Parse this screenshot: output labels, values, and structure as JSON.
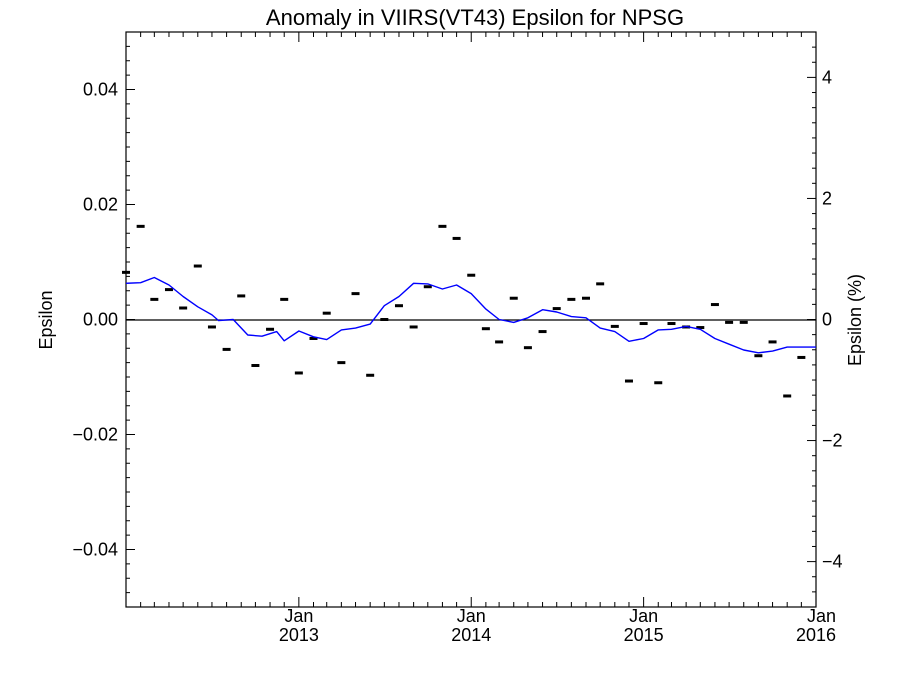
{
  "chart_data": {
    "type": "scatter",
    "title": "Anomaly in VIIRS(VT43) Epsilon for NPSG",
    "ylabel": "Epsilon",
    "ylabel_right": "Epsilon (%)",
    "xlim": [
      "2012-01-01",
      "2016-01-01"
    ],
    "ylim": [
      -0.05,
      0.05
    ],
    "ylim_right": [
      -4.75,
      4.75
    ],
    "x_ticks": [
      {
        "month": "Jan",
        "year": "2013",
        "date": "2013-01-01"
      },
      {
        "month": "Jan",
        "year": "2014",
        "date": "2014-01-01"
      },
      {
        "month": "Jan",
        "year": "2015",
        "date": "2015-01-01"
      },
      {
        "month": "Jan",
        "year": "2016",
        "date": "2016-01-01"
      }
    ],
    "y_ticks": [
      {
        "value": 0.04,
        "label": "0.04"
      },
      {
        "value": 0.02,
        "label": "0.02"
      },
      {
        "value": 0.0,
        "label": "0.00"
      },
      {
        "value": -0.02,
        "label": "−0.02"
      },
      {
        "value": -0.04,
        "label": "−0.04"
      }
    ],
    "y_ticks_right": [
      {
        "value": 4,
        "label": "4"
      },
      {
        "value": 2,
        "label": "2"
      },
      {
        "value": 0,
        "label": "0"
      },
      {
        "value": -2,
        "label": "−2"
      },
      {
        "value": -4,
        "label": "−4"
      }
    ],
    "zero_line": true,
    "grid": false,
    "series": [
      {
        "marker": "dash",
        "color": "#000000",
        "points": [
          {
            "x": "2012-01-01",
            "y": 0.0082
          },
          {
            "x": "2012-02-01",
            "y": 0.0162
          },
          {
            "x": "2012-03-01",
            "y": 0.0035
          },
          {
            "x": "2012-04-01",
            "y": 0.0052
          },
          {
            "x": "2012-05-01",
            "y": 0.002
          },
          {
            "x": "2012-06-01",
            "y": 0.0093
          },
          {
            "x": "2012-07-01",
            "y": -0.0013
          },
          {
            "x": "2012-08-01",
            "y": -0.0052
          },
          {
            "x": "2012-09-01",
            "y": 0.0041
          },
          {
            "x": "2012-10-01",
            "y": -0.008
          },
          {
            "x": "2012-11-01",
            "y": -0.0017
          },
          {
            "x": "2012-12-01",
            "y": 0.0035
          },
          {
            "x": "2013-01-01",
            "y": -0.0093
          },
          {
            "x": "2013-02-01",
            "y": -0.0033
          },
          {
            "x": "2013-03-01",
            "y": 0.0011
          },
          {
            "x": "2013-04-01",
            "y": -0.0075
          },
          {
            "x": "2013-05-01",
            "y": 0.0045
          },
          {
            "x": "2013-06-01",
            "y": -0.0097
          },
          {
            "x": "2013-07-01",
            "y": 0.0
          },
          {
            "x": "2013-08-01",
            "y": 0.0024
          },
          {
            "x": "2013-09-01",
            "y": -0.0013
          },
          {
            "x": "2013-10-01",
            "y": 0.0057
          },
          {
            "x": "2013-11-01",
            "y": 0.0162
          },
          {
            "x": "2013-12-01",
            "y": 0.0141
          },
          {
            "x": "2014-01-01",
            "y": 0.0077
          },
          {
            "x": "2014-02-01",
            "y": -0.0016
          },
          {
            "x": "2014-03-01",
            "y": -0.0039
          },
          {
            "x": "2014-04-01",
            "y": 0.0037
          },
          {
            "x": "2014-05-01",
            "y": -0.0049
          },
          {
            "x": "2014-06-01",
            "y": -0.0021
          },
          {
            "x": "2014-07-01",
            "y": 0.0019
          },
          {
            "x": "2014-08-01",
            "y": 0.0035
          },
          {
            "x": "2014-09-01",
            "y": 0.0037
          },
          {
            "x": "2014-10-01",
            "y": 0.0062
          },
          {
            "x": "2014-11-01",
            "y": -0.0012
          },
          {
            "x": "2014-12-01",
            "y": -0.0107
          },
          {
            "x": "2015-01-01",
            "y": -0.0007
          },
          {
            "x": "2015-02-01",
            "y": -0.011
          },
          {
            "x": "2015-03-01",
            "y": -0.0007
          },
          {
            "x": "2015-04-01",
            "y": -0.0013
          },
          {
            "x": "2015-05-01",
            "y": -0.0014
          },
          {
            "x": "2015-06-01",
            "y": 0.0026
          },
          {
            "x": "2015-07-01",
            "y": -0.0005
          },
          {
            "x": "2015-08-01",
            "y": -0.0005
          },
          {
            "x": "2015-09-01",
            "y": -0.0063
          },
          {
            "x": "2015-10-01",
            "y": -0.0039
          },
          {
            "x": "2015-11-01",
            "y": -0.0133
          },
          {
            "x": "2015-12-01",
            "y": -0.0066
          }
        ]
      },
      {
        "marker": "line",
        "color": "#0000ff",
        "points": [
          {
            "x": "2012-01-01",
            "y": 0.0063
          },
          {
            "x": "2012-02-01",
            "y": 0.0064
          },
          {
            "x": "2012-03-01",
            "y": 0.0073
          },
          {
            "x": "2012-04-01",
            "y": 0.006
          },
          {
            "x": "2012-05-01",
            "y": 0.004
          },
          {
            "x": "2012-06-01",
            "y": 0.0022
          },
          {
            "x": "2012-07-01",
            "y": 0.0008
          },
          {
            "x": "2012-07-15",
            "y": -0.0002
          },
          {
            "x": "2012-08-15",
            "y": 0.0
          },
          {
            "x": "2012-09-15",
            "y": -0.0027
          },
          {
            "x": "2012-10-15",
            "y": -0.0029
          },
          {
            "x": "2012-11-15",
            "y": -0.0021
          },
          {
            "x": "2012-12-01",
            "y": -0.0037
          },
          {
            "x": "2013-01-01",
            "y": -0.002
          },
          {
            "x": "2013-02-01",
            "y": -0.003
          },
          {
            "x": "2013-03-01",
            "y": -0.0035
          },
          {
            "x": "2013-04-01",
            "y": -0.0018
          },
          {
            "x": "2013-05-01",
            "y": -0.0015
          },
          {
            "x": "2013-06-01",
            "y": -0.0008
          },
          {
            "x": "2013-07-01",
            "y": 0.0024
          },
          {
            "x": "2013-08-01",
            "y": 0.004
          },
          {
            "x": "2013-09-01",
            "y": 0.0063
          },
          {
            "x": "2013-10-01",
            "y": 0.0062
          },
          {
            "x": "2013-11-01",
            "y": 0.0053
          },
          {
            "x": "2013-12-01",
            "y": 0.006
          },
          {
            "x": "2014-01-01",
            "y": 0.0045
          },
          {
            "x": "2014-02-01",
            "y": 0.0018
          },
          {
            "x": "2014-03-01",
            "y": 0.0
          },
          {
            "x": "2014-04-01",
            "y": -0.0005
          },
          {
            "x": "2014-05-01",
            "y": 0.0003
          },
          {
            "x": "2014-06-01",
            "y": 0.0017
          },
          {
            "x": "2014-07-01",
            "y": 0.0013
          },
          {
            "x": "2014-08-01",
            "y": 0.0005
          },
          {
            "x": "2014-09-01",
            "y": 0.0003
          },
          {
            "x": "2014-10-01",
            "y": -0.0015
          },
          {
            "x": "2014-11-01",
            "y": -0.0021
          },
          {
            "x": "2014-12-01",
            "y": -0.0038
          },
          {
            "x": "2015-01-01",
            "y": -0.0033
          },
          {
            "x": "2015-02-01",
            "y": -0.0018
          },
          {
            "x": "2015-03-01",
            "y": -0.0017
          },
          {
            "x": "2015-04-01",
            "y": -0.0012
          },
          {
            "x": "2015-05-01",
            "y": -0.0017
          },
          {
            "x": "2015-06-01",
            "y": -0.0033
          },
          {
            "x": "2015-07-01",
            "y": -0.0043
          },
          {
            "x": "2015-08-01",
            "y": -0.0053
          },
          {
            "x": "2015-09-01",
            "y": -0.0058
          },
          {
            "x": "2015-10-01",
            "y": -0.0055
          },
          {
            "x": "2015-11-01",
            "y": -0.0048
          },
          {
            "x": "2016-01-01",
            "y": -0.0048
          }
        ]
      }
    ]
  }
}
